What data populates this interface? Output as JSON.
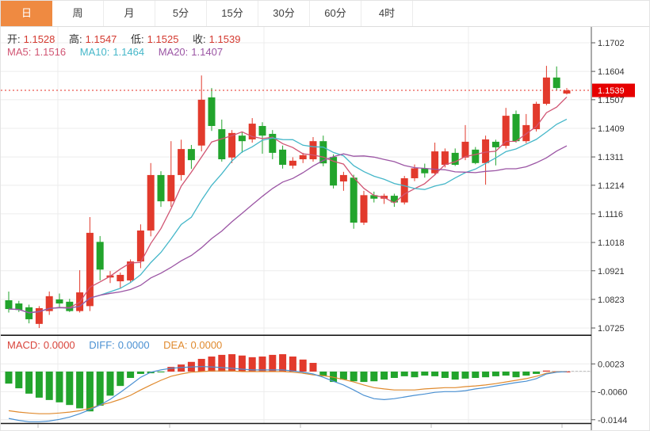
{
  "toolbar": {
    "tabs": [
      {
        "label": "日",
        "active": true
      },
      {
        "label": "周",
        "active": false
      },
      {
        "label": "月",
        "active": false
      },
      {
        "label": "5分",
        "active": false
      },
      {
        "label": "15分",
        "active": false
      },
      {
        "label": "30分",
        "active": false
      },
      {
        "label": "60分",
        "active": false
      },
      {
        "label": "4时",
        "active": false
      }
    ]
  },
  "legend": {
    "ohlc": {
      "open_label": "开:",
      "open": "1.1528",
      "high_label": "高:",
      "high": "1.1547",
      "low_label": "低:",
      "low": "1.1525",
      "close_label": "收:",
      "close": "1.1539"
    },
    "ma": {
      "ma5_label": "MA5:",
      "ma5": "1.1516",
      "ma10_label": "MA10:",
      "ma10": "1.1464",
      "ma20_label": "MA20:",
      "ma20": "1.1407"
    },
    "macd": {
      "macd_label": "MACD:",
      "macd": "0.0000",
      "diff_label": "DIFF:",
      "diff": "0.0000",
      "dea_label": "DEA:",
      "dea": "0.0000"
    }
  },
  "price_tag": "1.1539",
  "colors": {
    "up": "#e23a2c",
    "down": "#22a42c",
    "ma5": "#d15573",
    "ma10": "#45b7c9",
    "ma20": "#9b55a4",
    "diff": "#4a90d2",
    "dea": "#e08a2e",
    "tab_active_bg": "#ef8a41",
    "price_line": "#e62e23",
    "tag_bg": "#e60000",
    "axis_text": "#333333",
    "grid": "#ececec"
  },
  "chart_data": {
    "type": "candlestick",
    "title": "",
    "xlabel": "",
    "ylabel": "",
    "legend_position": "top-left",
    "grid": true,
    "main": {
      "y_ticks": [
        1.1702,
        1.1604,
        1.1507,
        1.1409,
        1.1311,
        1.1214,
        1.1116,
        1.1018,
        1.0921,
        1.0823,
        1.0725
      ],
      "ylim": [
        1.0698,
        1.1756
      ],
      "current_price": 1.1539,
      "ma_periods": [
        5,
        10,
        20
      ],
      "candles_format": [
        "open",
        "high",
        "low",
        "close"
      ],
      "candles": [
        [
          1.082,
          1.085,
          1.0778,
          1.079
        ],
        [
          1.0809,
          1.0818,
          1.078,
          1.0787
        ],
        [
          1.0796,
          1.0805,
          1.0741,
          1.0755
        ],
        [
          1.0739,
          1.08,
          1.0725,
          1.0793
        ],
        [
          1.0783,
          1.085,
          1.077,
          1.0834
        ],
        [
          1.0823,
          1.0843,
          1.0795,
          1.0809
        ],
        [
          1.0815,
          1.0825,
          1.078,
          1.0783
        ],
        [
          1.0783,
          1.0923,
          1.0778,
          1.0847
        ],
        [
          1.08,
          1.1105,
          1.0783,
          1.1051
        ],
        [
          1.102,
          1.104,
          1.0888,
          1.0925
        ],
        [
          1.0898,
          1.092,
          1.0879,
          1.0905
        ],
        [
          1.0885,
          1.0915,
          1.086,
          1.0907
        ],
        [
          1.0888,
          1.096,
          1.088,
          1.0953
        ],
        [
          1.0953,
          1.108,
          1.093,
          1.1059
        ],
        [
          1.1059,
          1.129,
          1.1039,
          1.1249
        ],
        [
          1.1249,
          1.1262,
          1.114,
          1.1159
        ],
        [
          1.1159,
          1.1365,
          1.114,
          1.1249
        ],
        [
          1.1249,
          1.137,
          1.123,
          1.1338
        ],
        [
          1.1338,
          1.1352,
          1.127,
          1.13
        ],
        [
          1.135,
          1.159,
          1.133,
          1.1507
        ],
        [
          1.1515,
          1.1547,
          1.14,
          1.1417
        ],
        [
          1.1406,
          1.1439,
          1.1295,
          1.1303
        ],
        [
          1.1309,
          1.1403,
          1.129,
          1.1393
        ],
        [
          1.1384,
          1.1397,
          1.1325,
          1.1365
        ],
        [
          1.1371,
          1.1444,
          1.136,
          1.1425
        ],
        [
          1.1417,
          1.143,
          1.1322,
          1.1384
        ],
        [
          1.139,
          1.1403,
          1.1303,
          1.1325
        ],
        [
          1.1336,
          1.135,
          1.1271,
          1.1284
        ],
        [
          1.1281,
          1.131,
          1.1271,
          1.1298
        ],
        [
          1.1303,
          1.1325,
          1.129,
          1.1317
        ],
        [
          1.1303,
          1.1379,
          1.1295,
          1.1365
        ],
        [
          1.1365,
          1.1384,
          1.1279,
          1.1289
        ],
        [
          1.1311,
          1.132,
          1.1203,
          1.1213
        ],
        [
          1.1227,
          1.126,
          1.1195,
          1.1249
        ],
        [
          1.124,
          1.125,
          1.1065,
          1.1086
        ],
        [
          1.1086,
          1.1195,
          1.1078,
          1.118
        ],
        [
          1.118,
          1.1192,
          1.1155,
          1.1168
        ],
        [
          1.1168,
          1.1185,
          1.115,
          1.1178
        ],
        [
          1.1178,
          1.1185,
          1.114,
          1.1155
        ],
        [
          1.1155,
          1.1246,
          1.1148,
          1.1238
        ],
        [
          1.1238,
          1.1285,
          1.1228,
          1.1272
        ],
        [
          1.1272,
          1.1288,
          1.124,
          1.1255
        ],
        [
          1.1255,
          1.136,
          1.1248,
          1.133
        ],
        [
          1.1284,
          1.134,
          1.1275,
          1.133
        ],
        [
          1.1325,
          1.134,
          1.128,
          1.1284
        ],
        [
          1.1309,
          1.142,
          1.13,
          1.1363
        ],
        [
          1.1336,
          1.1345,
          1.1286,
          1.129
        ],
        [
          1.129,
          1.1384,
          1.1216,
          1.1371
        ],
        [
          1.1363,
          1.137,
          1.1282,
          1.1344
        ],
        [
          1.1349,
          1.1479,
          1.134,
          1.1452
        ],
        [
          1.1458,
          1.147,
          1.136,
          1.1365
        ],
        [
          1.1365,
          1.1458,
          1.1358,
          1.142
        ],
        [
          1.1406,
          1.15,
          1.1398,
          1.1493
        ],
        [
          1.1493,
          1.1623,
          1.1488,
          1.1583
        ],
        [
          1.1583,
          1.1621,
          1.154,
          1.1547
        ],
        [
          1.1528,
          1.1547,
          1.1525,
          1.1539
        ]
      ]
    },
    "macd": {
      "y_ticks": [
        0.0023,
        -0.006,
        -0.0144
      ],
      "ylim": [
        -0.018,
        0.0107
      ],
      "hist": [
        -0.0036,
        -0.005,
        -0.0066,
        -0.0078,
        -0.0085,
        -0.0092,
        -0.01,
        -0.011,
        -0.0119,
        -0.0102,
        -0.0072,
        -0.0043,
        -0.0019,
        -0.0007,
        -0.0005,
        -0.0002,
        0.0014,
        0.0021,
        0.0029,
        0.0038,
        0.0045,
        0.005,
        0.0052,
        0.0048,
        0.0043,
        0.0045,
        0.005,
        0.0052,
        0.0045,
        0.0036,
        0.0026,
        -0.0014,
        -0.0031,
        -0.0024,
        -0.0029,
        -0.0031,
        -0.0029,
        -0.0024,
        -0.0019,
        -0.0014,
        -0.0017,
        -0.0012,
        -0.0014,
        -0.0019,
        -0.0024,
        -0.0021,
        -0.0019,
        -0.0017,
        -0.0014,
        -0.0012,
        -0.0017,
        -0.0012,
        -0.0007,
        0.0003,
        0.0001,
        0.0
      ],
      "diff": [
        -0.014,
        -0.0146,
        -0.015,
        -0.015,
        -0.0148,
        -0.0143,
        -0.0136,
        -0.0126,
        -0.0114,
        -0.01,
        -0.0083,
        -0.0062,
        -0.004,
        -0.0017,
        -0.0002,
        0.0005,
        0.001,
        0.0012,
        0.0014,
        0.0015,
        0.0014,
        0.0012,
        0.001,
        0.0007,
        0.0005,
        0.0005,
        0.0005,
        0.0005,
        0.0002,
        -0.0002,
        -0.0007,
        -0.0017,
        -0.0029,
        -0.004,
        -0.0055,
        -0.0071,
        -0.0081,
        -0.0084,
        -0.0081,
        -0.0076,
        -0.0071,
        -0.0067,
        -0.0062,
        -0.006,
        -0.006,
        -0.0057,
        -0.0052,
        -0.0048,
        -0.0043,
        -0.0038,
        -0.0033,
        -0.0029,
        -0.0021,
        -0.0007,
        -0.0002,
        0.0
      ],
      "dea": [
        -0.0117,
        -0.0121,
        -0.0124,
        -0.0126,
        -0.0126,
        -0.0124,
        -0.0121,
        -0.0117,
        -0.011,
        -0.01,
        -0.0093,
        -0.0083,
        -0.0071,
        -0.0055,
        -0.004,
        -0.0026,
        -0.0014,
        -0.0007,
        -0.0002,
        0.0,
        0.0002,
        0.0002,
        0.0002,
        0.0,
        0.0,
        0.0,
        0.0,
        0.0,
        -0.0002,
        -0.0005,
        -0.001,
        -0.0012,
        -0.0017,
        -0.0024,
        -0.0031,
        -0.004,
        -0.0048,
        -0.0052,
        -0.0055,
        -0.0055,
        -0.0055,
        -0.0052,
        -0.005,
        -0.0048,
        -0.0048,
        -0.0045,
        -0.0043,
        -0.004,
        -0.0036,
        -0.0031,
        -0.0026,
        -0.0021,
        -0.0014,
        -0.0005,
        -0.0001,
        0.0
      ]
    }
  }
}
